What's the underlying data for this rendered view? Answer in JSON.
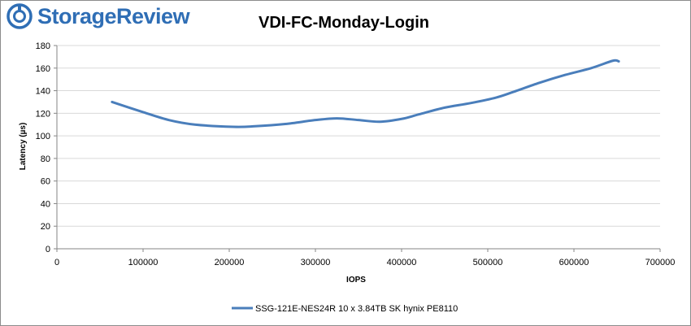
{
  "brand": {
    "name": "StorageReview",
    "colors": {
      "accent": "#2f6eb5"
    }
  },
  "chart_data": {
    "type": "line",
    "title": "VDI-FC-Monday-Login",
    "xlabel": "IOPS",
    "ylabel": "Latency (µs)",
    "xlim": [
      0,
      700000
    ],
    "ylim": [
      0,
      180
    ],
    "xticks": [
      0,
      100000,
      200000,
      300000,
      400000,
      500000,
      600000,
      700000
    ],
    "yticks": [
      0,
      20,
      40,
      60,
      80,
      100,
      120,
      140,
      160,
      180
    ],
    "grid": "horizontal",
    "legend_position": "bottom",
    "series": [
      {
        "name": "SSG-121E-NES24R 10 x 3.84TB SK hynix PE8110",
        "color": "#4a7ebb",
        "points": [
          [
            64000,
            130
          ],
          [
            100000,
            121
          ],
          [
            130000,
            114
          ],
          [
            160000,
            110
          ],
          [
            205000,
            108
          ],
          [
            230000,
            108.5
          ],
          [
            265000,
            110.5
          ],
          [
            300000,
            114
          ],
          [
            325000,
            115.5
          ],
          [
            350000,
            114
          ],
          [
            375000,
            112.5
          ],
          [
            400000,
            115
          ],
          [
            420000,
            119
          ],
          [
            450000,
            125
          ],
          [
            480000,
            129
          ],
          [
            510000,
            134
          ],
          [
            530000,
            139
          ],
          [
            560000,
            147
          ],
          [
            590000,
            154
          ],
          [
            620000,
            160
          ],
          [
            645000,
            166.5
          ],
          [
            652000,
            166
          ]
        ]
      }
    ]
  }
}
